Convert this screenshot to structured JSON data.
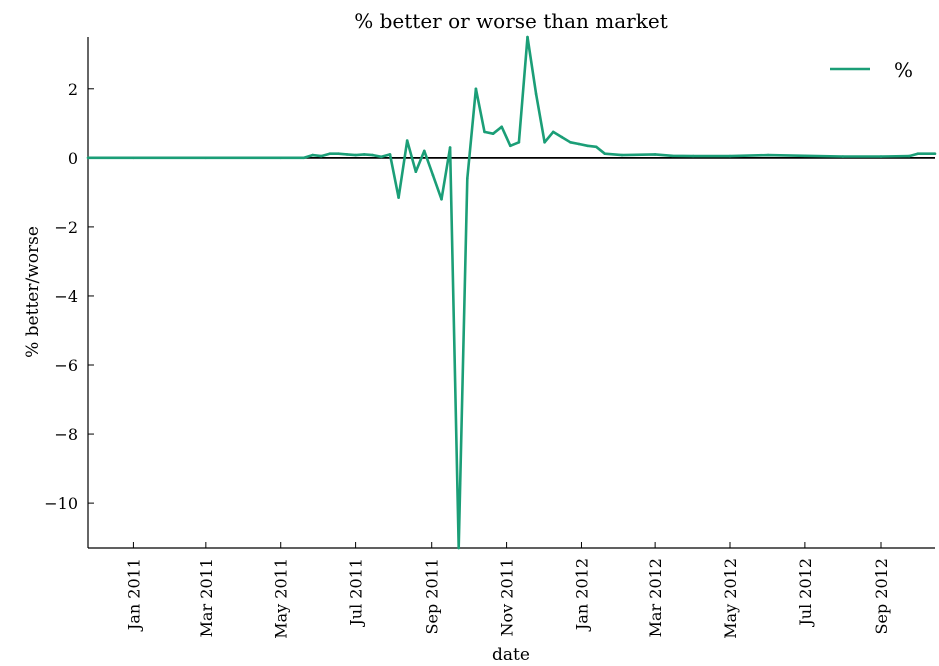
{
  "chart_data": {
    "type": "line",
    "title": "% better or worse than market",
    "xlabel": "date",
    "ylabel": "% better/worse",
    "x_ticks": [
      "Jan 2011",
      "Mar 2011",
      "May 2011",
      "Jul 2011",
      "Sep 2011",
      "Nov 2011",
      "Jan 2012",
      "Mar 2012",
      "May 2012",
      "Jul 2012",
      "Sep 2012"
    ],
    "x_tick_dates": [
      "2011-01-01",
      "2011-03-01",
      "2011-05-01",
      "2011-07-01",
      "2011-09-01",
      "2011-11-01",
      "2012-01-01",
      "2012-03-01",
      "2012-05-01",
      "2012-07-01",
      "2012-09-01"
    ],
    "xlim": [
      "2010-11-25",
      "2012-10-15"
    ],
    "ylim": [
      -11.3,
      3.5
    ],
    "y_ticks": [
      2,
      0,
      -2,
      -4,
      -6,
      -8,
      -10
    ],
    "y_tick_labels": [
      "2",
      "0",
      "−2",
      "−4",
      "−6",
      "−8",
      "−10"
    ],
    "grid": false,
    "legend_position": "top-right",
    "reference_line": {
      "y": 0,
      "color": "#000000"
    },
    "series": [
      {
        "name": "%",
        "color": "#1b9e77",
        "points": [
          [
            "2010-11-25",
            0.0
          ],
          [
            "2011-01-01",
            0.0
          ],
          [
            "2011-03-01",
            0.0
          ],
          [
            "2011-05-01",
            0.0
          ],
          [
            "2011-05-20",
            0.0
          ],
          [
            "2011-05-27",
            0.08
          ],
          [
            "2011-06-03",
            0.05
          ],
          [
            "2011-06-10",
            0.12
          ],
          [
            "2011-06-17",
            0.12
          ],
          [
            "2011-06-24",
            0.1
          ],
          [
            "2011-07-01",
            0.08
          ],
          [
            "2011-07-08",
            0.1
          ],
          [
            "2011-07-15",
            0.08
          ],
          [
            "2011-07-22",
            0.03
          ],
          [
            "2011-07-29",
            0.1
          ],
          [
            "2011-08-05",
            -1.15
          ],
          [
            "2011-08-12",
            0.5
          ],
          [
            "2011-08-19",
            -0.4
          ],
          [
            "2011-08-26",
            0.2
          ],
          [
            "2011-09-02",
            -0.5
          ],
          [
            "2011-09-09",
            -1.2
          ],
          [
            "2011-09-16",
            0.3
          ],
          [
            "2011-09-23",
            -11.3
          ],
          [
            "2011-09-30",
            -0.6
          ],
          [
            "2011-10-07",
            2.0
          ],
          [
            "2011-10-14",
            0.75
          ],
          [
            "2011-10-21",
            0.7
          ],
          [
            "2011-10-28",
            0.9
          ],
          [
            "2011-11-04",
            0.35
          ],
          [
            "2011-11-11",
            0.45
          ],
          [
            "2011-11-18",
            3.5
          ],
          [
            "2011-11-25",
            1.85
          ],
          [
            "2011-12-02",
            0.45
          ],
          [
            "2011-12-09",
            0.75
          ],
          [
            "2011-12-16",
            0.6
          ],
          [
            "2011-12-23",
            0.45
          ],
          [
            "2011-12-30",
            0.4
          ],
          [
            "2012-01-06",
            0.35
          ],
          [
            "2012-01-13",
            0.32
          ],
          [
            "2012-01-20",
            0.12
          ],
          [
            "2012-02-03",
            0.08
          ],
          [
            "2012-03-01",
            0.1
          ],
          [
            "2012-03-15",
            0.06
          ],
          [
            "2012-04-01",
            0.05
          ],
          [
            "2012-05-01",
            0.05
          ],
          [
            "2012-06-01",
            0.08
          ],
          [
            "2012-07-01",
            0.06
          ],
          [
            "2012-08-01",
            0.04
          ],
          [
            "2012-09-01",
            0.04
          ],
          [
            "2012-09-24",
            0.05
          ],
          [
            "2012-10-01",
            0.12
          ],
          [
            "2012-10-15",
            0.12
          ]
        ]
      }
    ]
  }
}
